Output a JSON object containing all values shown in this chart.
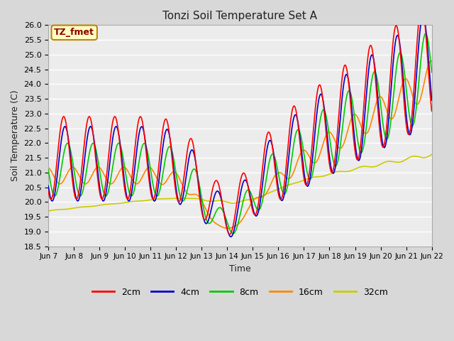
{
  "title": "Tonzi Soil Temperature Set A",
  "xlabel": "Time",
  "ylabel": "Soil Temperature (C)",
  "ylim": [
    18.5,
    26.0
  ],
  "colors": {
    "2cm": "#ff0000",
    "4cm": "#0000cc",
    "8cm": "#00cc00",
    "16cm": "#ff8800",
    "32cm": "#cccc00"
  },
  "legend_labels": [
    "2cm",
    "4cm",
    "8cm",
    "16cm",
    "32cm"
  ],
  "annotation_text": "TZ_fmet",
  "annotation_color": "#8b0000",
  "annotation_bg": "#ffffc0",
  "annotation_border": "#b8860b",
  "bg_color": "#d8d8d8",
  "plot_bg": "#ececec",
  "xtick_labels": [
    "Jun 7",
    "Jun 8",
    "Jun 9",
    "Jun 10",
    "Jun 11",
    "Jun 12",
    "Jun 13",
    "Jun 14",
    "Jun 15",
    "Jun 16",
    "Jun 17",
    "Jun 18",
    "Jun 19",
    "Jun 20",
    "Jun 21",
    "Jun 22"
  ],
  "line_width": 1.2
}
